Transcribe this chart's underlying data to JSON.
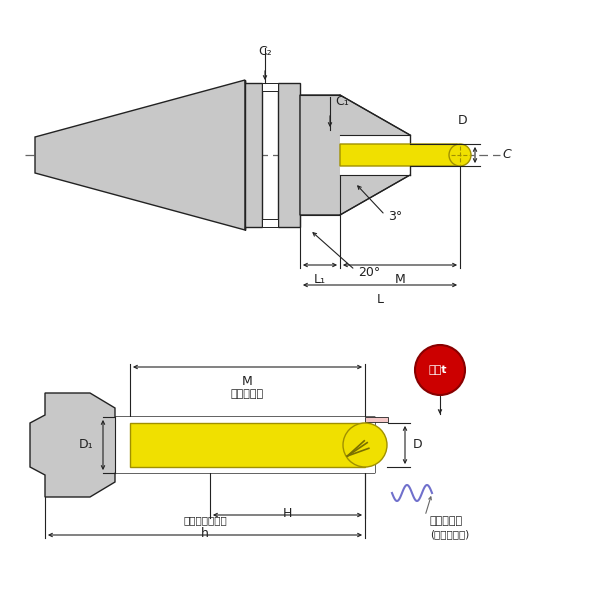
{
  "bg_color": "#ffffff",
  "line_color": "#222222",
  "gray_color": "#c8c8c8",
  "yellow_color": "#f0e000",
  "pink_color": "#f5c8c8",
  "red_color": "#cc0000",
  "blue_color": "#7070cc",
  "dim_color": "#222222",
  "label_3deg": "3°",
  "label_20deg": "20°",
  "label_C2": "C₂",
  "label_C1": "C₁",
  "label_D": "D",
  "label_C": "C",
  "label_L1": "L₁",
  "label_M": "M",
  "label_L": "L",
  "label_D1": "D₁",
  "label_H": "H",
  "label_h": "h",
  "label_kako": "加工有効長",
  "label_kougu": "工具最大挿入長",
  "label_tsukamilen": "つかみ長さ",
  "label_saitei": "(最低把持長)",
  "label_nikuatsu": "肉厕t"
}
